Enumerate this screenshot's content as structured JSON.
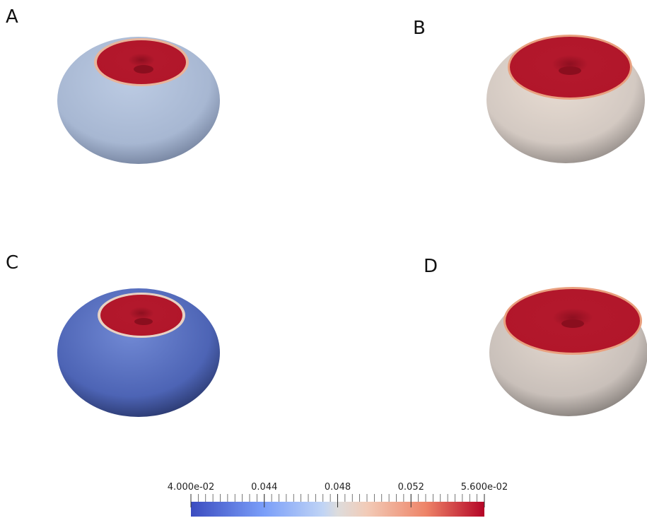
{
  "panels": [
    {
      "label": "A"
    },
    {
      "label": "B"
    },
    {
      "label": "C"
    },
    {
      "label": "D"
    }
  ],
  "colorbar": {
    "range": [
      0.04,
      0.056
    ],
    "ticks": [
      {
        "value": 0.04,
        "label": "4.000e-02"
      },
      0.044,
      0.048,
      0.052,
      {
        "value": 0.056,
        "label": "5.600e-02"
      }
    ]
  }
}
